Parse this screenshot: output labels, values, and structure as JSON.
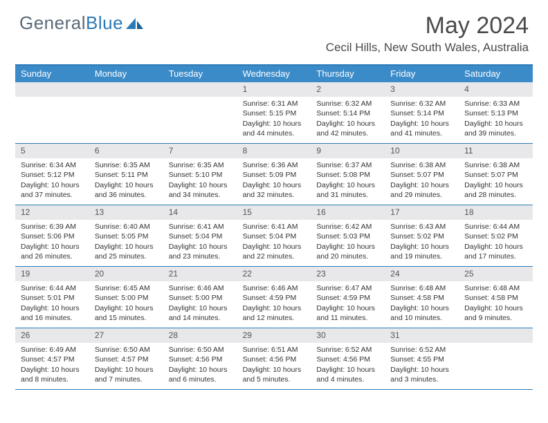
{
  "brand": {
    "part1": "General",
    "part2": "Blue"
  },
  "title": "May 2024",
  "location": "Cecil Hills, New South Wales, Australia",
  "colors": {
    "header_bg": "#3b8bc9",
    "border": "#2a7ab8",
    "daynum_bg": "#e8e8ea",
    "text": "#333333",
    "logo_gray": "#5a6a78",
    "logo_blue": "#2a7ab8"
  },
  "weekdays": [
    "Sunday",
    "Monday",
    "Tuesday",
    "Wednesday",
    "Thursday",
    "Friday",
    "Saturday"
  ],
  "weeks": [
    [
      {
        "num": "",
        "empty": true
      },
      {
        "num": "",
        "empty": true
      },
      {
        "num": "",
        "empty": true
      },
      {
        "num": "1",
        "sunrise": "Sunrise: 6:31 AM",
        "sunset": "Sunset: 5:15 PM",
        "day1": "Daylight: 10 hours",
        "day2": "and 44 minutes."
      },
      {
        "num": "2",
        "sunrise": "Sunrise: 6:32 AM",
        "sunset": "Sunset: 5:14 PM",
        "day1": "Daylight: 10 hours",
        "day2": "and 42 minutes."
      },
      {
        "num": "3",
        "sunrise": "Sunrise: 6:32 AM",
        "sunset": "Sunset: 5:14 PM",
        "day1": "Daylight: 10 hours",
        "day2": "and 41 minutes."
      },
      {
        "num": "4",
        "sunrise": "Sunrise: 6:33 AM",
        "sunset": "Sunset: 5:13 PM",
        "day1": "Daylight: 10 hours",
        "day2": "and 39 minutes."
      }
    ],
    [
      {
        "num": "5",
        "sunrise": "Sunrise: 6:34 AM",
        "sunset": "Sunset: 5:12 PM",
        "day1": "Daylight: 10 hours",
        "day2": "and 37 minutes."
      },
      {
        "num": "6",
        "sunrise": "Sunrise: 6:35 AM",
        "sunset": "Sunset: 5:11 PM",
        "day1": "Daylight: 10 hours",
        "day2": "and 36 minutes."
      },
      {
        "num": "7",
        "sunrise": "Sunrise: 6:35 AM",
        "sunset": "Sunset: 5:10 PM",
        "day1": "Daylight: 10 hours",
        "day2": "and 34 minutes."
      },
      {
        "num": "8",
        "sunrise": "Sunrise: 6:36 AM",
        "sunset": "Sunset: 5:09 PM",
        "day1": "Daylight: 10 hours",
        "day2": "and 32 minutes."
      },
      {
        "num": "9",
        "sunrise": "Sunrise: 6:37 AM",
        "sunset": "Sunset: 5:08 PM",
        "day1": "Daylight: 10 hours",
        "day2": "and 31 minutes."
      },
      {
        "num": "10",
        "sunrise": "Sunrise: 6:38 AM",
        "sunset": "Sunset: 5:07 PM",
        "day1": "Daylight: 10 hours",
        "day2": "and 29 minutes."
      },
      {
        "num": "11",
        "sunrise": "Sunrise: 6:38 AM",
        "sunset": "Sunset: 5:07 PM",
        "day1": "Daylight: 10 hours",
        "day2": "and 28 minutes."
      }
    ],
    [
      {
        "num": "12",
        "sunrise": "Sunrise: 6:39 AM",
        "sunset": "Sunset: 5:06 PM",
        "day1": "Daylight: 10 hours",
        "day2": "and 26 minutes."
      },
      {
        "num": "13",
        "sunrise": "Sunrise: 6:40 AM",
        "sunset": "Sunset: 5:05 PM",
        "day1": "Daylight: 10 hours",
        "day2": "and 25 minutes."
      },
      {
        "num": "14",
        "sunrise": "Sunrise: 6:41 AM",
        "sunset": "Sunset: 5:04 PM",
        "day1": "Daylight: 10 hours",
        "day2": "and 23 minutes."
      },
      {
        "num": "15",
        "sunrise": "Sunrise: 6:41 AM",
        "sunset": "Sunset: 5:04 PM",
        "day1": "Daylight: 10 hours",
        "day2": "and 22 minutes."
      },
      {
        "num": "16",
        "sunrise": "Sunrise: 6:42 AM",
        "sunset": "Sunset: 5:03 PM",
        "day1": "Daylight: 10 hours",
        "day2": "and 20 minutes."
      },
      {
        "num": "17",
        "sunrise": "Sunrise: 6:43 AM",
        "sunset": "Sunset: 5:02 PM",
        "day1": "Daylight: 10 hours",
        "day2": "and 19 minutes."
      },
      {
        "num": "18",
        "sunrise": "Sunrise: 6:44 AM",
        "sunset": "Sunset: 5:02 PM",
        "day1": "Daylight: 10 hours",
        "day2": "and 17 minutes."
      }
    ],
    [
      {
        "num": "19",
        "sunrise": "Sunrise: 6:44 AM",
        "sunset": "Sunset: 5:01 PM",
        "day1": "Daylight: 10 hours",
        "day2": "and 16 minutes."
      },
      {
        "num": "20",
        "sunrise": "Sunrise: 6:45 AM",
        "sunset": "Sunset: 5:00 PM",
        "day1": "Daylight: 10 hours",
        "day2": "and 15 minutes."
      },
      {
        "num": "21",
        "sunrise": "Sunrise: 6:46 AM",
        "sunset": "Sunset: 5:00 PM",
        "day1": "Daylight: 10 hours",
        "day2": "and 14 minutes."
      },
      {
        "num": "22",
        "sunrise": "Sunrise: 6:46 AM",
        "sunset": "Sunset: 4:59 PM",
        "day1": "Daylight: 10 hours",
        "day2": "and 12 minutes."
      },
      {
        "num": "23",
        "sunrise": "Sunrise: 6:47 AM",
        "sunset": "Sunset: 4:59 PM",
        "day1": "Daylight: 10 hours",
        "day2": "and 11 minutes."
      },
      {
        "num": "24",
        "sunrise": "Sunrise: 6:48 AM",
        "sunset": "Sunset: 4:58 PM",
        "day1": "Daylight: 10 hours",
        "day2": "and 10 minutes."
      },
      {
        "num": "25",
        "sunrise": "Sunrise: 6:48 AM",
        "sunset": "Sunset: 4:58 PM",
        "day1": "Daylight: 10 hours",
        "day2": "and 9 minutes."
      }
    ],
    [
      {
        "num": "26",
        "sunrise": "Sunrise: 6:49 AM",
        "sunset": "Sunset: 4:57 PM",
        "day1": "Daylight: 10 hours",
        "day2": "and 8 minutes."
      },
      {
        "num": "27",
        "sunrise": "Sunrise: 6:50 AM",
        "sunset": "Sunset: 4:57 PM",
        "day1": "Daylight: 10 hours",
        "day2": "and 7 minutes."
      },
      {
        "num": "28",
        "sunrise": "Sunrise: 6:50 AM",
        "sunset": "Sunset: 4:56 PM",
        "day1": "Daylight: 10 hours",
        "day2": "and 6 minutes."
      },
      {
        "num": "29",
        "sunrise": "Sunrise: 6:51 AM",
        "sunset": "Sunset: 4:56 PM",
        "day1": "Daylight: 10 hours",
        "day2": "and 5 minutes."
      },
      {
        "num": "30",
        "sunrise": "Sunrise: 6:52 AM",
        "sunset": "Sunset: 4:56 PM",
        "day1": "Daylight: 10 hours",
        "day2": "and 4 minutes."
      },
      {
        "num": "31",
        "sunrise": "Sunrise: 6:52 AM",
        "sunset": "Sunset: 4:55 PM",
        "day1": "Daylight: 10 hours",
        "day2": "and 3 minutes."
      },
      {
        "num": "",
        "empty": true
      }
    ]
  ]
}
